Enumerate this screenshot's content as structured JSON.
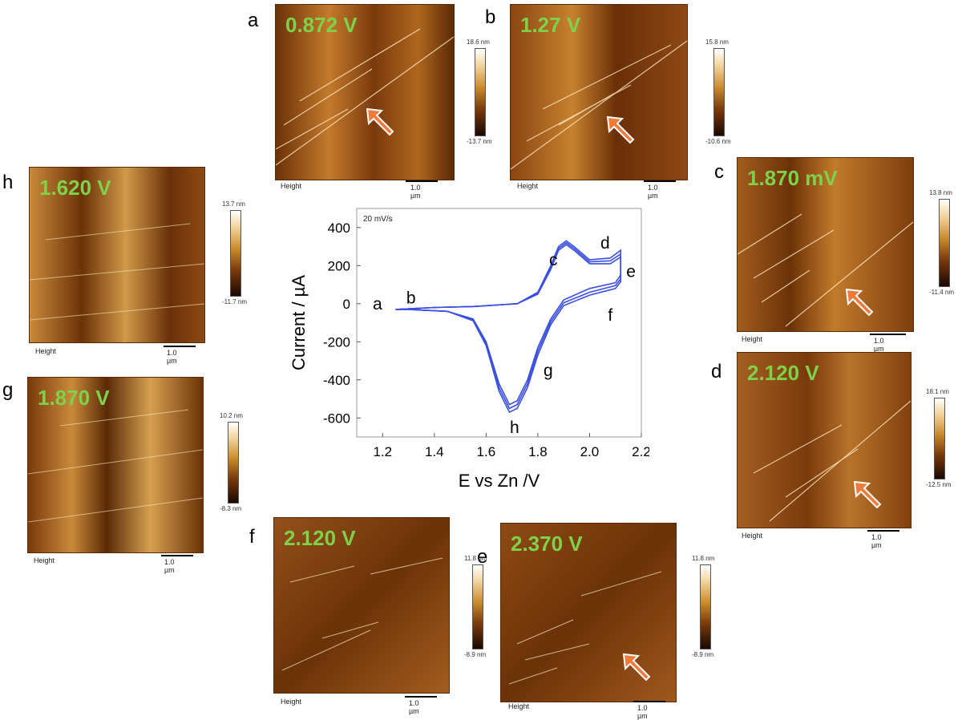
{
  "panels": [
    {
      "letter": "a",
      "voltage": "0.872 V",
      "cbar_top": "18.6 nm",
      "cbar_bottom": "-13.7 nm",
      "height_label": "Height",
      "scale_label": "1.0 µm"
    },
    {
      "letter": "b",
      "voltage": "1.27 V",
      "cbar_top": "15.8 nm",
      "cbar_bottom": "-10.6 nm",
      "height_label": "Height",
      "scale_label": "1.0 µm"
    },
    {
      "letter": "c",
      "voltage": "1.870 mV",
      "cbar_top": "13.8 nm",
      "cbar_bottom": "-11.4 nm",
      "height_label": "Height",
      "scale_label": "1.0 µm"
    },
    {
      "letter": "d",
      "voltage": "2.120 V",
      "cbar_top": "18.1 nm",
      "cbar_bottom": "-12.5 nm",
      "height_label": "Height",
      "scale_label": "1.0 µm"
    },
    {
      "letter": "e",
      "voltage": "2.370 V",
      "cbar_top": "11.8 nm",
      "cbar_bottom": "-8.9 nm",
      "height_label": "Height",
      "scale_label": "1.0 µm"
    },
    {
      "letter": "f",
      "voltage": "2.120 V",
      "cbar_top": "11.8 nm",
      "cbar_bottom": "-8.9 nm",
      "height_label": "Height",
      "scale_label": "1.0 µm"
    },
    {
      "letter": "g",
      "voltage": "1.870 V",
      "cbar_top": "10.2 nm",
      "cbar_bottom": "-8.3 nm",
      "height_label": "Height",
      "scale_label": "1.0 µm"
    },
    {
      "letter": "h",
      "voltage": "1.620 V",
      "cbar_top": "13.7 nm",
      "cbar_bottom": "-11.7 nm",
      "height_label": "Height",
      "scale_label": "1.0 µm"
    }
  ],
  "colors": {
    "voltage_text": "#7dd24a",
    "arrow": "#f07a3a",
    "cv_line": "#3b4fe0"
  },
  "chart_data": {
    "type": "line",
    "annotation": "20 mV/s",
    "xlabel": "E vs Zn /V",
    "ylabel": "Current / µA",
    "xlim": [
      1.1,
      2.2
    ],
    "ylim": [
      -700,
      500
    ],
    "xticks": [
      "1.2",
      "1.4",
      "1.6",
      "1.8",
      "2.0",
      "2.2"
    ],
    "xtick_values": [
      1.2,
      1.4,
      1.6,
      1.8,
      2.0,
      2.2
    ],
    "yticks": [
      "400",
      "200",
      "0",
      "-200",
      "-400",
      "-600"
    ],
    "ytick_values": [
      400,
      200,
      0,
      -200,
      -400,
      -600
    ],
    "series": [
      {
        "x": [
          1.25,
          1.4,
          1.55,
          1.72,
          1.8,
          1.85,
          1.88,
          1.91,
          1.94,
          2.0,
          2.08,
          2.12,
          2.12,
          2.1,
          2.0,
          1.9,
          1.85,
          1.8,
          1.76,
          1.72,
          1.69,
          1.65,
          1.6,
          1.55,
          1.45,
          1.3,
          1.25
        ],
        "y": [
          -30,
          -20,
          -15,
          0,
          60,
          200,
          300,
          330,
          300,
          230,
          240,
          280,
          150,
          110,
          80,
          20,
          -80,
          -230,
          -400,
          -510,
          -530,
          -420,
          -200,
          -80,
          -40,
          -30,
          -30
        ]
      },
      {
        "x": [
          1.25,
          1.4,
          1.55,
          1.72,
          1.8,
          1.85,
          1.88,
          1.91,
          1.94,
          2.0,
          2.08,
          2.12,
          2.12,
          2.1,
          2.0,
          1.9,
          1.85,
          1.8,
          1.76,
          1.72,
          1.69,
          1.65,
          1.6,
          1.55,
          1.45,
          1.3,
          1.25
        ],
        "y": [
          -30,
          -20,
          -15,
          0,
          55,
          190,
          290,
          320,
          290,
          220,
          225,
          260,
          130,
          95,
          60,
          5,
          -95,
          -250,
          -420,
          -530,
          -550,
          -440,
          -210,
          -85,
          -40,
          -30,
          -30
        ]
      },
      {
        "x": [
          1.25,
          1.4,
          1.55,
          1.72,
          1.8,
          1.85,
          1.88,
          1.91,
          1.94,
          2.0,
          2.08,
          2.12,
          2.12,
          2.1,
          2.0,
          1.9,
          1.85,
          1.8,
          1.76,
          1.72,
          1.69,
          1.65,
          1.6,
          1.55,
          1.45,
          1.3,
          1.25
        ],
        "y": [
          -30,
          -20,
          -15,
          0,
          50,
          180,
          280,
          310,
          280,
          210,
          210,
          245,
          115,
          80,
          45,
          -10,
          -110,
          -270,
          -440,
          -550,
          -570,
          -460,
          -220,
          -90,
          -40,
          -30,
          -30
        ]
      }
    ],
    "point_labels": [
      {
        "text": "a",
        "x": 1.18,
        "y": 0
      },
      {
        "text": "b",
        "x": 1.31,
        "y": 30
      },
      {
        "text": "c",
        "x": 1.86,
        "y": 230
      },
      {
        "text": "d",
        "x": 2.06,
        "y": 320
      },
      {
        "text": "e",
        "x": 2.16,
        "y": 170
      },
      {
        "text": "f",
        "x": 2.08,
        "y": -60
      },
      {
        "text": "g",
        "x": 1.84,
        "y": -350
      },
      {
        "text": "h",
        "x": 1.71,
        "y": -650
      }
    ]
  }
}
